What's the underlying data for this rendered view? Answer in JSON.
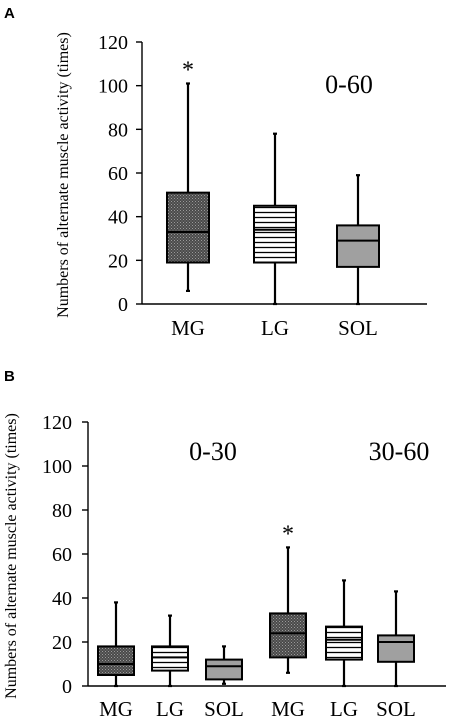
{
  "chart_data": [
    {
      "type": "boxplot",
      "panel": "A",
      "range_label": "0-60",
      "ylabel": "Numbers of alternate muscle activity  (times)",
      "ylim": [
        0,
        120
      ],
      "yticks": [
        0,
        20,
        40,
        60,
        80,
        100,
        120
      ],
      "categories": [
        "MG",
        "LG",
        "SOL"
      ],
      "boxes": [
        {
          "category": "MG",
          "min": 6,
          "q1": 19,
          "median": 33,
          "q3": 51,
          "max": 101,
          "fill": "dots",
          "significant": true
        },
        {
          "category": "LG",
          "min": 0,
          "q1": 19,
          "median": 34,
          "q3": 45,
          "max": 78,
          "fill": "hlines",
          "significant": false
        },
        {
          "category": "SOL",
          "min": 0,
          "q1": 17,
          "median": 29,
          "q3": 36,
          "max": 59,
          "fill": "gray",
          "significant": false
        }
      ],
      "annotation": "*"
    },
    {
      "type": "boxplot",
      "panel": "B",
      "ylabel": "Numbers of alternate muscle activity  (times)",
      "ylim": [
        0,
        120
      ],
      "yticks": [
        0,
        20,
        40,
        60,
        80,
        100,
        120
      ],
      "groups": [
        {
          "range_label": "0-30",
          "categories": [
            "MG",
            "LG",
            "SOL"
          ],
          "boxes": [
            {
              "category": "MG",
              "min": 0,
              "q1": 5,
              "median": 10,
              "q3": 18,
              "max": 38,
              "fill": "dots",
              "significant": false
            },
            {
              "category": "LG",
              "min": 0,
              "q1": 7,
              "median": 13,
              "q3": 18,
              "max": 32,
              "fill": "hlines",
              "significant": false
            },
            {
              "category": "SOL",
              "min": 1,
              "q1": 3,
              "median": 9,
              "q3": 12,
              "max": 18,
              "fill": "gray",
              "significant": false
            }
          ]
        },
        {
          "range_label": "30-60",
          "categories": [
            "MG",
            "LG",
            "SOL"
          ],
          "boxes": [
            {
              "category": "MG",
              "min": 6,
              "q1": 13,
              "median": 24,
              "q3": 33,
              "max": 63,
              "fill": "dots",
              "significant": true
            },
            {
              "category": "LG",
              "min": 0,
              "q1": 12,
              "median": 21,
              "q3": 27,
              "max": 48,
              "fill": "hlines",
              "significant": false
            },
            {
              "category": "SOL",
              "min": 0,
              "q1": 11,
              "median": 20,
              "q3": 23,
              "max": 43,
              "fill": "gray",
              "significant": false
            }
          ]
        }
      ],
      "annotation": "*"
    }
  ],
  "colors": {
    "axis": "#000000",
    "box_dots": "#4a4a4a",
    "box_gray": "#a0a0a0",
    "box_lines_bg": "#ffffff"
  }
}
